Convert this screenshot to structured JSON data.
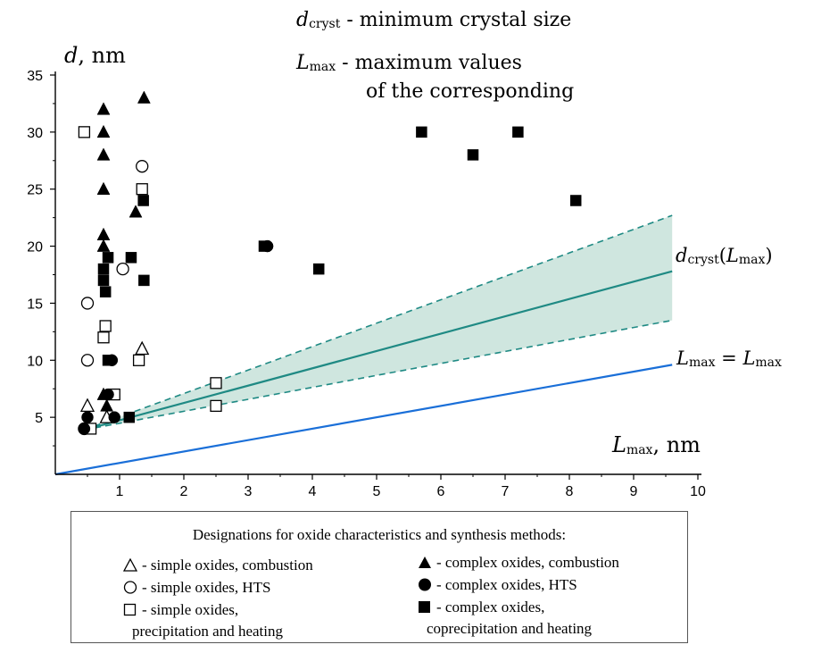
{
  "chart_data": {
    "type": "scatter",
    "title": "",
    "xlabel": "L",
    "xlabel_sub": "max",
    "xlabel_unit": ", nm",
    "ylabel": "d",
    "ylabel_unit": ", nm",
    "xlim": [
      0,
      10
    ],
    "ylim": [
      0,
      35
    ],
    "xticks": [
      "1",
      "2",
      "3",
      "4",
      "5",
      "6",
      "7",
      "8",
      "9",
      "10"
    ],
    "yticks": [
      "5",
      "10",
      "15",
      "20",
      "25",
      "30",
      "35"
    ],
    "grid": false,
    "series": [
      {
        "name": "simple oxides, combustion",
        "marker": "triangle",
        "filled": false,
        "points": [
          [
            0.5,
            6
          ],
          [
            0.8,
            5
          ],
          [
            1.35,
            11
          ]
        ]
      },
      {
        "name": "simple oxides, HTS",
        "marker": "circle",
        "filled": false,
        "points": [
          [
            0.45,
            4
          ],
          [
            0.5,
            10
          ],
          [
            0.5,
            15
          ],
          [
            1.05,
            18
          ],
          [
            1.35,
            27
          ]
        ]
      },
      {
        "name": "simple oxides, precipitation and heating",
        "marker": "square",
        "filled": false,
        "points": [
          [
            0.45,
            30
          ],
          [
            0.55,
            4
          ],
          [
            0.75,
            12
          ],
          [
            0.78,
            13
          ],
          [
            0.92,
            7
          ],
          [
            1.3,
            10
          ],
          [
            1.35,
            25
          ],
          [
            2.5,
            8
          ],
          [
            2.5,
            6
          ]
        ]
      },
      {
        "name": "complex oxides, combustion",
        "marker": "triangle",
        "filled": true,
        "points": [
          [
            0.75,
            32
          ],
          [
            0.75,
            30
          ],
          [
            0.75,
            28
          ],
          [
            0.75,
            25
          ],
          [
            0.75,
            21
          ],
          [
            0.75,
            20
          ],
          [
            0.75,
            7
          ],
          [
            0.8,
            6
          ],
          [
            1.25,
            23
          ],
          [
            1.38,
            33
          ]
        ]
      },
      {
        "name": "complex oxides, HTS",
        "marker": "circle",
        "filled": true,
        "points": [
          [
            0.45,
            4
          ],
          [
            0.5,
            5
          ],
          [
            0.82,
            7
          ],
          [
            0.88,
            10
          ],
          [
            0.92,
            5
          ],
          [
            3.3,
            20
          ]
        ]
      },
      {
        "name": "complex oxides, coprecipitation and heating",
        "marker": "square",
        "filled": true,
        "points": [
          [
            0.75,
            18
          ],
          [
            0.75,
            17
          ],
          [
            0.78,
            16
          ],
          [
            0.82,
            19
          ],
          [
            0.82,
            10
          ],
          [
            1.15,
            5
          ],
          [
            1.18,
            19
          ],
          [
            1.37,
            24
          ],
          [
            1.38,
            17
          ],
          [
            3.25,
            20
          ],
          [
            4.1,
            18
          ],
          [
            5.7,
            30
          ],
          [
            6.5,
            28
          ],
          [
            7.2,
            30
          ],
          [
            8.1,
            24
          ]
        ]
      }
    ],
    "lines": [
      {
        "name": "d_cryst(L_max)",
        "style": "solid",
        "color": "#1f8a84",
        "x": [
          0.45,
          9.6
        ],
        "y": [
          3.9,
          17.8
        ]
      },
      {
        "name": "upper bound",
        "style": "dashed",
        "color": "#1f8a84",
        "x": [
          0.45,
          9.6
        ],
        "y": [
          3.9,
          22.7
        ]
      },
      {
        "name": "lower bound",
        "style": "dashed",
        "color": "#1f8a84",
        "x": [
          0.45,
          9.6
        ],
        "y": [
          3.9,
          13.5
        ]
      },
      {
        "name": "L_max = L_max",
        "style": "solid",
        "color": "#1a6fd8",
        "x": [
          0,
          9.6
        ],
        "y": [
          0,
          9.6
        ]
      }
    ],
    "band_color": "#cfe6df",
    "annotations": {
      "d_symbol": "d",
      "d_sub": "cryst",
      "d_text": "- minimum crystal size",
      "l_symbol": "L",
      "l_sub": "max",
      "l_text": "- maximum values",
      "l_text2": "of the corresponding",
      "curve_label_d": "d",
      "curve_label_d_sub": "cryst",
      "curve_label_paren_open": "(",
      "curve_label_L": "L",
      "curve_label_L_sub": "max",
      "curve_label_paren_close": ")",
      "line_label_L1": "L",
      "line_label_sub1": "max",
      "line_label_eq": " = ",
      "line_label_L2": "L",
      "line_label_sub2": "max"
    }
  },
  "legend": {
    "title": "Designations for oxide characteristics and synthesis methods:",
    "items": [
      {
        "label": "- simple oxides, combustion"
      },
      {
        "label": "- simple oxides, HTS"
      },
      {
        "label": "- simple oxides,"
      },
      {
        "label": "precipitation and heating"
      },
      {
        "label": "- complex oxides, combustion"
      },
      {
        "label": "- complex oxides, HTS"
      },
      {
        "label": "- complex oxides,"
      },
      {
        "label": "coprecipitation and heating"
      }
    ]
  }
}
